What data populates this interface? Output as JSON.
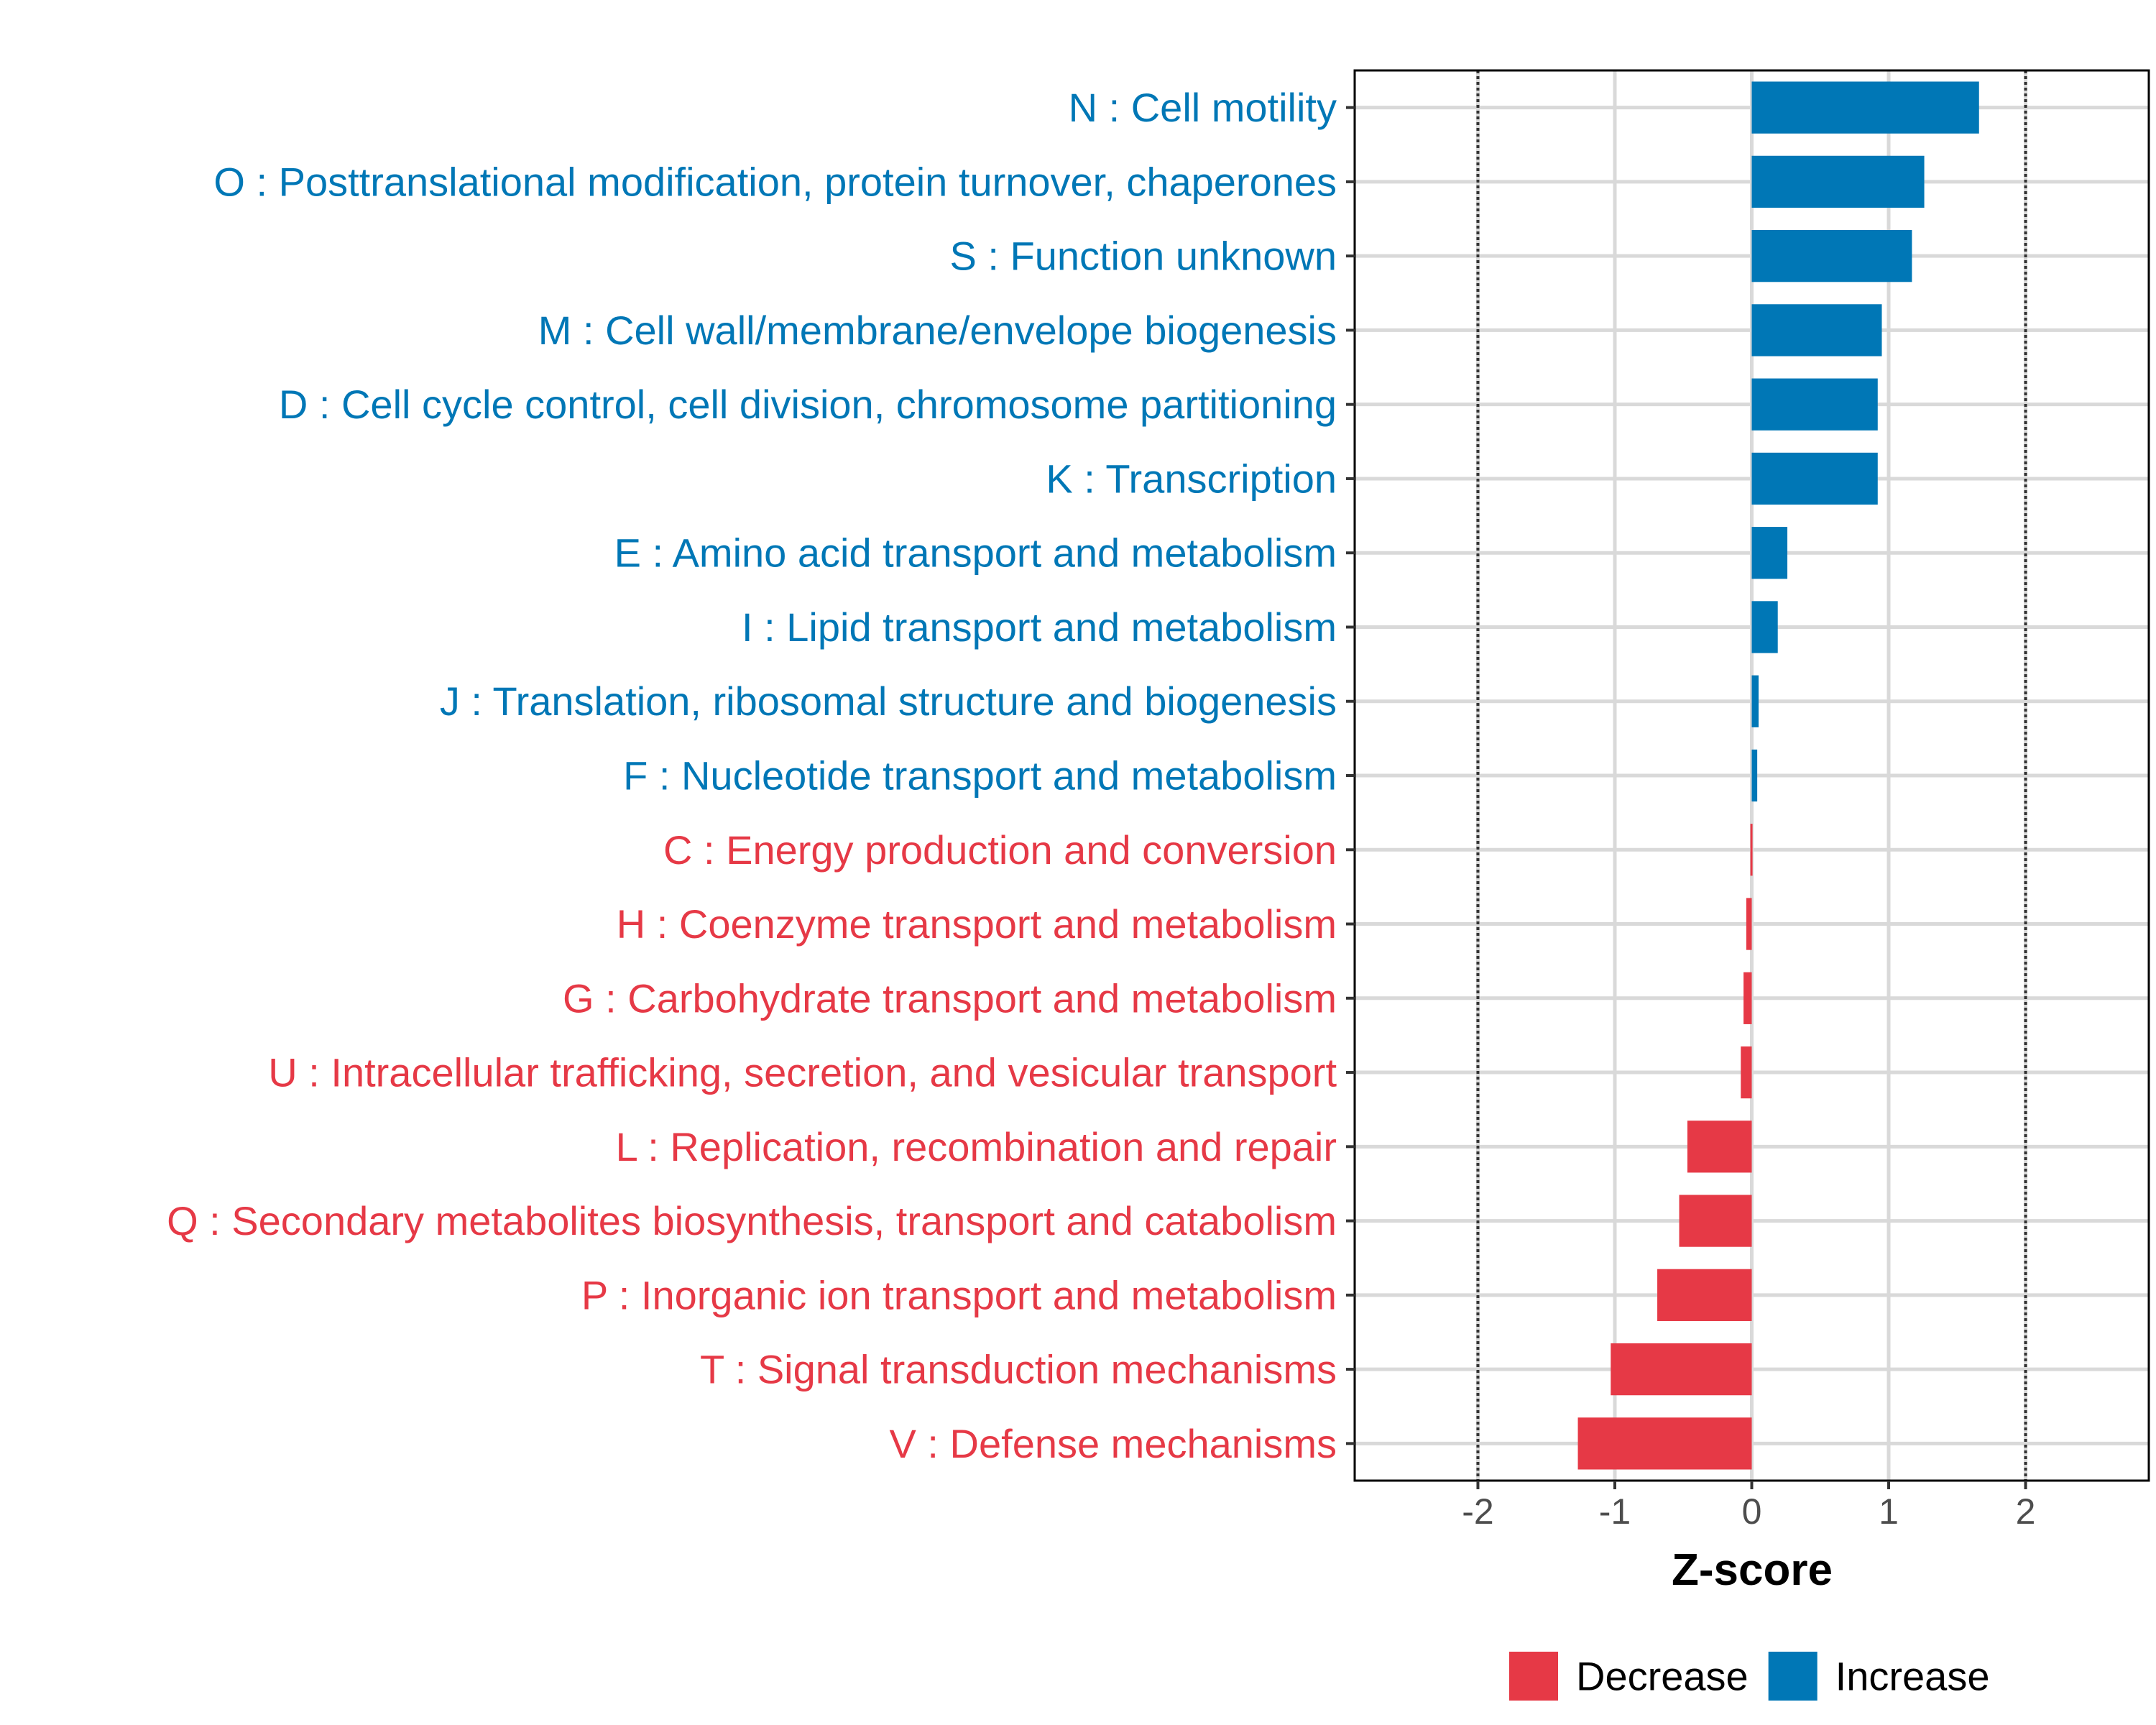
{
  "chart_data": {
    "type": "bar",
    "orientation": "horizontal",
    "xlabel": "Z-score",
    "ylabel": "",
    "xlim": [
      -2.9,
      2.9
    ],
    "xticks": [
      -2,
      -1,
      0,
      1,
      2
    ],
    "xtick_labels": [
      "-2",
      "-1",
      "0",
      "1",
      "2"
    ],
    "reference_lines": [
      -2,
      2
    ],
    "grid": true,
    "legend_position": "bottom",
    "categories": [
      "N : Cell motility",
      "O : Posttranslational modification, protein turnover, chaperones",
      "S : Function unknown",
      "M : Cell wall/membrane/envelope biogenesis",
      "D : Cell cycle control, cell division, chromosome partitioning",
      "K : Transcription",
      "E : Amino acid transport and metabolism",
      "I : Lipid transport and metabolism",
      "J : Translation, ribosomal structure and biogenesis",
      "F : Nucleotide transport and metabolism",
      "C : Energy production and conversion",
      "H : Coenzyme transport and metabolism",
      "G : Carbohydrate transport and metabolism",
      "U : Intracellular trafficking, secretion, and vesicular transport",
      "L : Replication, recombination and repair",
      "Q : Secondary metabolites biosynthesis, transport and catabolism",
      "P : Inorganic ion transport and metabolism",
      "T : Signal transduction mechanisms",
      "V : Defense mechanisms"
    ],
    "values": [
      1.66,
      1.26,
      1.17,
      0.95,
      0.92,
      0.92,
      0.26,
      0.19,
      0.05,
      0.04,
      -0.01,
      -0.04,
      -0.06,
      -0.08,
      -0.47,
      -0.53,
      -0.69,
      -1.03,
      -1.27
    ],
    "groups": [
      "Increase",
      "Increase",
      "Increase",
      "Increase",
      "Increase",
      "Increase",
      "Increase",
      "Increase",
      "Increase",
      "Increase",
      "Decrease",
      "Decrease",
      "Decrease",
      "Decrease",
      "Decrease",
      "Decrease",
      "Decrease",
      "Decrease",
      "Decrease"
    ],
    "legend": [
      {
        "name": "Decrease",
        "color": "#e63946"
      },
      {
        "name": "Increase",
        "color": "#0077b6"
      }
    ],
    "colors": {
      "Increase": "#0077b6",
      "Decrease": "#e63946"
    }
  }
}
